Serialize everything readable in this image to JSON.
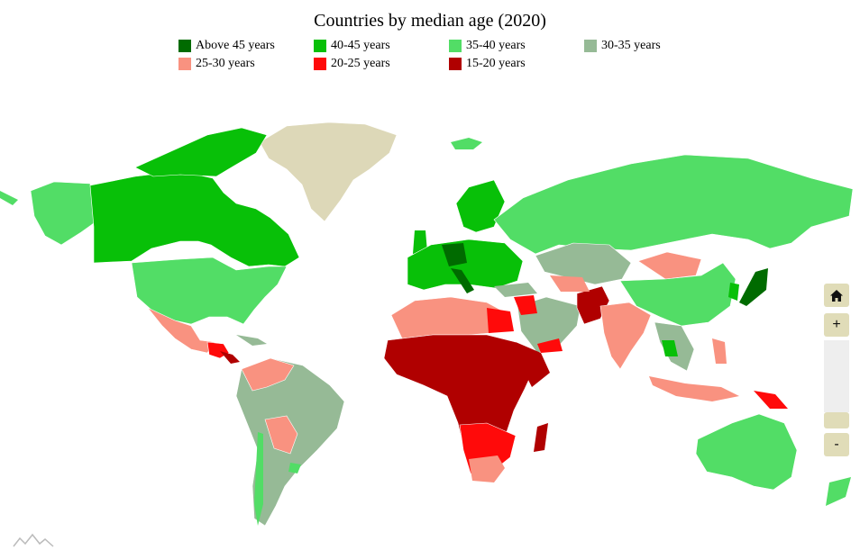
{
  "title": "Countries by median age (2020)",
  "legend": [
    {
      "label": "Above 45 years",
      "color": "#006b00"
    },
    {
      "label": "40-45 years",
      "color": "#08c008"
    },
    {
      "label": "35-40 years",
      "color": "#52dd66"
    },
    {
      "label": "30-35 years",
      "color": "#96ba96"
    },
    {
      "label": "25-30 years",
      "color": "#f99280"
    },
    {
      "label": "20-25 years",
      "color": "#ff0a0a"
    },
    {
      "label": "15-20 years",
      "color": "#b00000"
    }
  ],
  "no_data_color": "#ddd8b8",
  "controls": {
    "home": "home-icon",
    "zoom_in": "+",
    "zoom_out": "-"
  }
}
